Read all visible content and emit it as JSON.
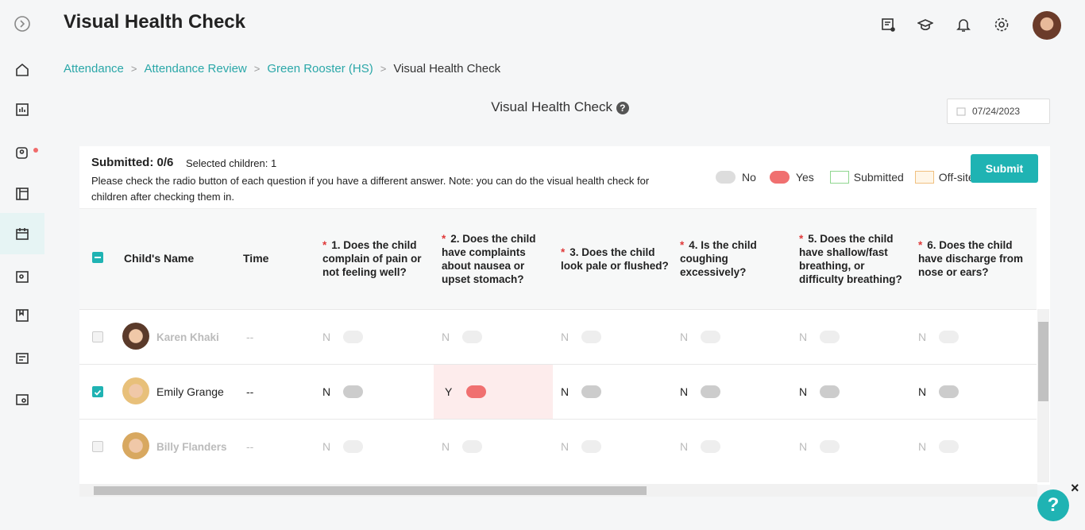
{
  "header": {
    "title": "Visual Health Check"
  },
  "breadcrumbs": [
    "Attendance",
    "Attendance Review",
    "Green Rooster (HS)",
    "Visual Health Check"
  ],
  "panel": {
    "title": "Visual Health Check",
    "date": "07/24/2023"
  },
  "summary": {
    "submitted": "Submitted: 0/6",
    "selected": "Selected children: 1",
    "note": "Please check the radio button of each question if you have a different answer. Note: you can do the visual health check for children after checking them in.",
    "submit": "Submit"
  },
  "legend": [
    "No",
    "Yes",
    "Submitted",
    "Off-site"
  ],
  "table": {
    "required_mark": "*",
    "name_header": "Child's Name",
    "time_header": "Time",
    "questions": [
      "1. Does the child complain of pain or not feeling well?",
      "2. Does the child have complaints about nausea or upset stomach?",
      "3. Does the child look pale or flushed?",
      "4. Is the child coughing excessively?",
      "5. Does the child have shallow/fast breathing, or difficulty breathing?",
      "6. Does the child have discharge from nose or ears?"
    ],
    "rows": [
      {
        "name": "Karen Khaki",
        "time": "--",
        "checked": false,
        "faded": true,
        "answers": [
          "N",
          "N",
          "N",
          "N",
          "N",
          "N"
        ]
      },
      {
        "name": "Emily Grange",
        "time": "--",
        "checked": true,
        "faded": false,
        "answers": [
          "N",
          "Y",
          "N",
          "N",
          "N",
          "N"
        ]
      },
      {
        "name": "Billy Flanders",
        "time": "--",
        "checked": false,
        "faded": true,
        "answers": [
          "N",
          "N",
          "N",
          "N",
          "N",
          "N"
        ]
      }
    ]
  }
}
